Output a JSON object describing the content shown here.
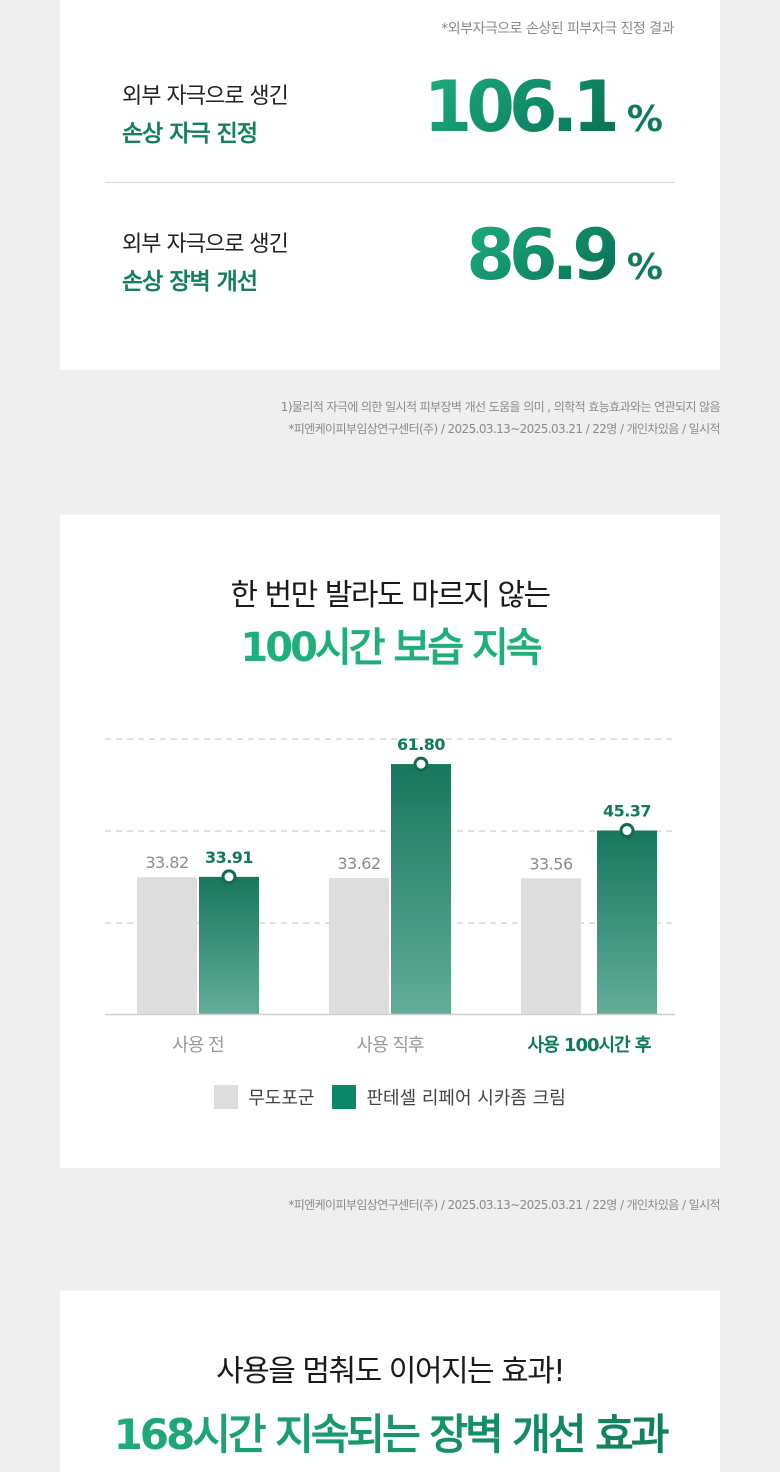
{
  "card1": {
    "source": "*외부자극으로 손상된 피부자극 진정 결과",
    "stats": [
      {
        "line1": "외부 자극으로 생긴",
        "line2": "손상 자극 진정",
        "value": "106.1",
        "unit": "%"
      },
      {
        "line1": "외부 자극으로 생긴",
        "line2": "손상 장벽 개선",
        "value": "86.9",
        "unit": "%"
      }
    ]
  },
  "notes": {
    "n1": "1)물리적 자극에 의한 일시적 피부장벽 개선 도움을 의미 , 의학적 효능효과와는 연관되지 않음",
    "n2": "*피엔케이피부임상연구센터(주) / 2025.03.13~2025.03.21 / 22명 / 개인차있음 / 일시적",
    "n3": "*피엔케이피부임상연구센터(주) / 2025.03.13~2025.03.21 / 22명 / 개인차있음 / 일시적"
  },
  "card2": {
    "headline1": "한 번만 발라도 마르지 않는",
    "headline2": "100시간 보습 지속"
  },
  "card3": {
    "headline1": "사용을 멈춰도 이어지는 효과!",
    "headline2": "168시간 지속되는 장벽 개선 효과"
  },
  "colors": {
    "accent": "#13805f",
    "bar_gray": "#dddddd",
    "bar_green_top": "#17775c",
    "bar_green_bottom": "#62ad99"
  },
  "chart_data": {
    "type": "bar",
    "categories": [
      "사용 전",
      "사용 직후",
      "사용 100시간 후"
    ],
    "highlight_category": "사용 100시간 후",
    "series": [
      {
        "name": "무도포군",
        "values": [
          33.82,
          33.62,
          33.56
        ],
        "labels": [
          "33.82",
          "33.62",
          "33.56"
        ]
      },
      {
        "name": "판테셀 리페어 시카좀 크림",
        "values": [
          33.91,
          61.8,
          45.37
        ],
        "labels": [
          "33.91",
          "61.80",
          "45.37"
        ]
      }
    ],
    "ylim": [
      0,
      68
    ],
    "grid": true,
    "legend": "bottom"
  }
}
